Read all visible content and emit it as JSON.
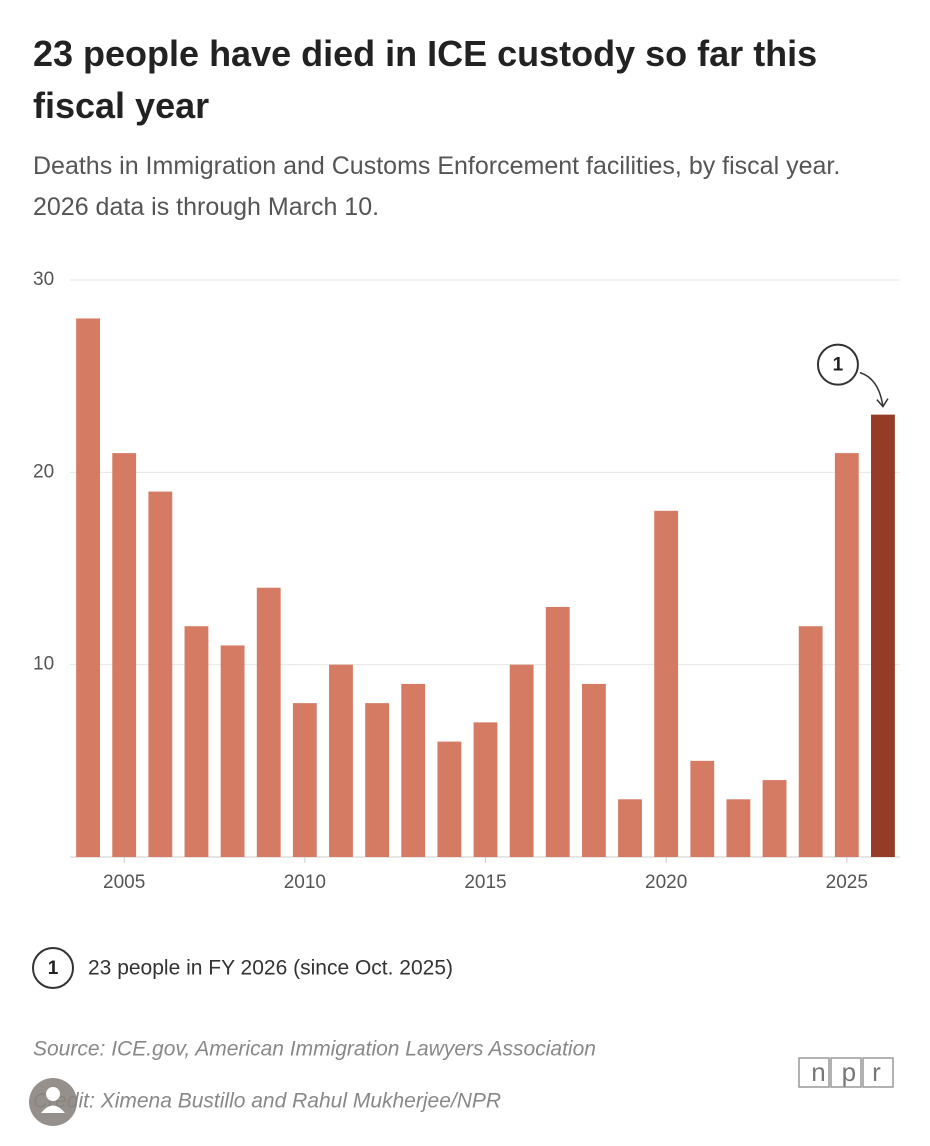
{
  "chart_data": {
    "type": "bar",
    "title": "23 people have died in ICE custody so far this fiscal year",
    "subtitle": "Deaths in Immigration and Customs Enforcement facilities, by fiscal year. 2026 data is through March 10.",
    "x": [
      2004,
      2005,
      2006,
      2007,
      2008,
      2009,
      2010,
      2011,
      2012,
      2013,
      2014,
      2015,
      2016,
      2017,
      2018,
      2019,
      2020,
      2021,
      2022,
      2023,
      2024,
      2025,
      2026
    ],
    "values": [
      28,
      21,
      19,
      12,
      11,
      14,
      8,
      10,
      8,
      9,
      6,
      7,
      10,
      13,
      9,
      3,
      18,
      5,
      3,
      4,
      12,
      21,
      23
    ],
    "colors": [
      "#d57b64",
      "#d57b64",
      "#d57b64",
      "#d57b64",
      "#d57b64",
      "#d57b64",
      "#d57b64",
      "#d57b64",
      "#d57b64",
      "#d57b64",
      "#d57b64",
      "#d57b64",
      "#d57b64",
      "#d57b64",
      "#d57b64",
      "#d57b64",
      "#d57b64",
      "#d57b64",
      "#d57b64",
      "#d57b64",
      "#d57b64",
      "#d57b64",
      "#943c27"
    ],
    "xlim": [
      2003.5,
      2026.5
    ],
    "xticks": [
      2005,
      2010,
      2015,
      2020,
      2025
    ],
    "ylim": [
      0,
      30
    ],
    "yticks": [
      10,
      20,
      30
    ],
    "grid": true,
    "annotation": {
      "marker": "1",
      "x": 2026,
      "text": "23 people in FY 2026 (since Oct. 2025)"
    },
    "source": "Source: ICE.gov, American Immigration Lawyers Association",
    "credit": "Credit: Ximena Bustillo and Rahul Mukherjee/NPR",
    "logo": "npr"
  }
}
